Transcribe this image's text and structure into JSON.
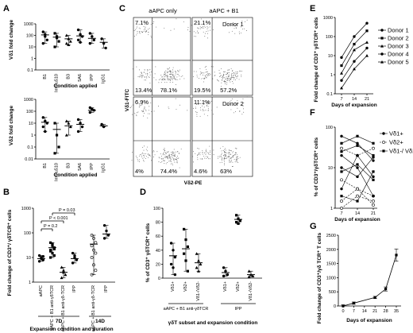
{
  "panels": {
    "A": {
      "letter": "A",
      "top": {
        "ylabel": "Vδ1 fold change",
        "xlabel": "Condition applied",
        "categories": [
          "B1",
          "Immu510",
          "B3",
          "5A6",
          "IPP",
          "IgG1"
        ],
        "yticks": [
          "1000",
          "100",
          "10",
          "1",
          "0.1"
        ],
        "points": [
          [
            200,
            80,
            40,
            20,
            120
          ],
          [
            150,
            60,
            30,
            10,
            80
          ],
          [
            100,
            50,
            30,
            20,
            15
          ],
          [
            300,
            120,
            80,
            40,
            25
          ],
          [
            150,
            80,
            40,
            20
          ],
          [
            50,
            20,
            8
          ]
        ],
        "means": [
          110,
          70,
          50,
          90,
          55,
          25
        ]
      },
      "bottom": {
        "ylabel": "Vδ2 fold change",
        "xlabel": "Condition applied",
        "categories": [
          "B1",
          "Immu510",
          "B3",
          "5A6",
          "IPP",
          "IgG1"
        ],
        "yticks": [
          "1000",
          "100",
          "10",
          "1",
          "0.1",
          "0.01"
        ],
        "points": [
          [
            30,
            15,
            10,
            5,
            2
          ],
          [
            10,
            1,
            0.1,
            0.03
          ],
          [
            15,
            10,
            5,
            1
          ],
          [
            20,
            10,
            5,
            2
          ],
          [
            200,
            150,
            120,
            80
          ],
          [
            8,
            5
          ]
        ],
        "means": [
          12,
          3,
          6,
          8,
          120,
          6
        ]
      }
    },
    "B": {
      "letter": "B",
      "ylabel": "Fold change of CD3⁺/ γδTCR⁺ cells",
      "xlabel": "Expansion condition and duration",
      "yticks": [
        "1000",
        "100",
        "10",
        "1"
      ],
      "categories": [
        "aAPC",
        "aAPC + B1 anti-γδTCR",
        "aAPC + B1 anti-γδ-TCR",
        "IPP",
        "aAPC + B1 anti-γδ-TCR",
        "IPP"
      ],
      "group_labels": [
        "7D",
        "14D"
      ],
      "pvalues": [
        "P = 0.2",
        "P < 0.001",
        "P = 0.03"
      ],
      "means": [
        9,
        25,
        2.5,
        9,
        35,
        90
      ],
      "points": [
        [
          12,
          9,
          8,
          7,
          10,
          11
        ],
        [
          40,
          30,
          25,
          20,
          15,
          12,
          10,
          35,
          22,
          18
        ],
        [
          4,
          3,
          2,
          1.5,
          2.5
        ],
        [
          15,
          12,
          8,
          6,
          10
        ],
        [
          80,
          60,
          40,
          30,
          20,
          15,
          10,
          5,
          3,
          2
        ],
        [
          200,
          120,
          80,
          60
        ]
      ]
    },
    "C": {
      "letter": "C",
      "col_labels": [
        "aAPC only",
        "aAPC + B1"
      ],
      "row_labels": [
        "Donor 1",
        "Donor 2"
      ],
      "yaxis": "Vδ1-FITC",
      "xaxis": "Vδ2-PE",
      "quadrants": [
        [
          "7.1%",
          "",
          "13.4%",
          "78.1%"
        ],
        [
          "21.1%",
          "",
          "19.5%",
          "57.2%"
        ],
        [
          "6.9%",
          "",
          "4%",
          "74.4%"
        ],
        [
          "11.1%",
          "",
          "4.6%",
          "63%"
        ]
      ]
    },
    "D": {
      "letter": "D",
      "ylabel": "% of CD3⁺ γδTCR⁺ cells",
      "xlabel": "γδT subset and expansion condition",
      "yticks": [
        "100",
        "80",
        "60",
        "40",
        "20",
        "0"
      ],
      "categories": [
        "Vδ1+",
        "Vδ2+",
        "Vδ1-/Vδ2-",
        "Vδ1+",
        "Vδ2+",
        "Vδ1-/Vδ2-"
      ],
      "group_labels": [
        "aAPC + B1 anti-γδTCR",
        "IPP"
      ],
      "means": [
        32,
        42,
        22,
        8,
        84,
        5
      ],
      "points": [
        [
          50,
          40,
          30,
          20,
          15,
          5
        ],
        [
          70,
          55,
          45,
          35,
          25,
          10
        ],
        [
          35,
          25,
          20,
          15,
          10
        ],
        [
          15,
          10,
          5,
          3
        ],
        [
          90,
          85,
          82,
          80,
          78
        ],
        [
          10,
          5,
          3,
          2
        ]
      ]
    },
    "E": {
      "letter": "E",
      "ylabel": "Fold change of CD3⁺ γδTCR⁺ cells",
      "xlabel": "Days of expansion",
      "yticks": [
        "1000",
        "100",
        "10",
        "1",
        "0.1"
      ],
      "x": [
        7,
        14,
        21
      ],
      "series": [
        {
          "name": "Donor 1",
          "values": [
            8,
            100,
            500
          ]
        },
        {
          "name": "Donor 2",
          "values": [
            3,
            40,
            200
          ]
        },
        {
          "name": "Donor 3",
          "values": [
            1.2,
            20,
            50
          ]
        },
        {
          "name": "Donor 4",
          "values": [
            0.5,
            5,
            25
          ]
        },
        {
          "name": "Donor 5",
          "values": [
            0.2,
            2,
            10
          ]
        }
      ]
    },
    "F": {
      "letter": "F",
      "ylabel": "% of CD3⁺/γδTCR⁺ cells",
      "xlabel": "Days of expansion",
      "yticks": [
        "100",
        "10",
        "1"
      ],
      "x": [
        7,
        14,
        21
      ],
      "legend": [
        "Vδ1+",
        "Vδ2+",
        "Vδ1-/ Vδ2-"
      ],
      "lines": [
        [
          60,
          40,
          15
        ],
        [
          30,
          20,
          30
        ],
        [
          8,
          12,
          5
        ],
        [
          3,
          20,
          6
        ],
        [
          1.5,
          3,
          2
        ],
        [
          40,
          60,
          40
        ],
        [
          20,
          10,
          2
        ],
        [
          5,
          3,
          1.2
        ],
        [
          2,
          1.5,
          8
        ],
        [
          10,
          6,
          18
        ],
        [
          1,
          2,
          1.5
        ],
        [
          25,
          35,
          20
        ]
      ]
    },
    "G": {
      "letter": "G",
      "ylabel": "Fold change of CD3⁺/γδ TCR⁺ T cells",
      "xlabel": "Days of expansion",
      "yticks": [
        "2500",
        "2000",
        "1500",
        "1000",
        "500",
        "0"
      ],
      "xticks": [
        "0",
        "7",
        "14",
        "21",
        "28",
        "35"
      ],
      "x": [
        0,
        7,
        21,
        28,
        35
      ],
      "values": [
        1,
        100,
        300,
        600,
        1800
      ]
    }
  }
}
